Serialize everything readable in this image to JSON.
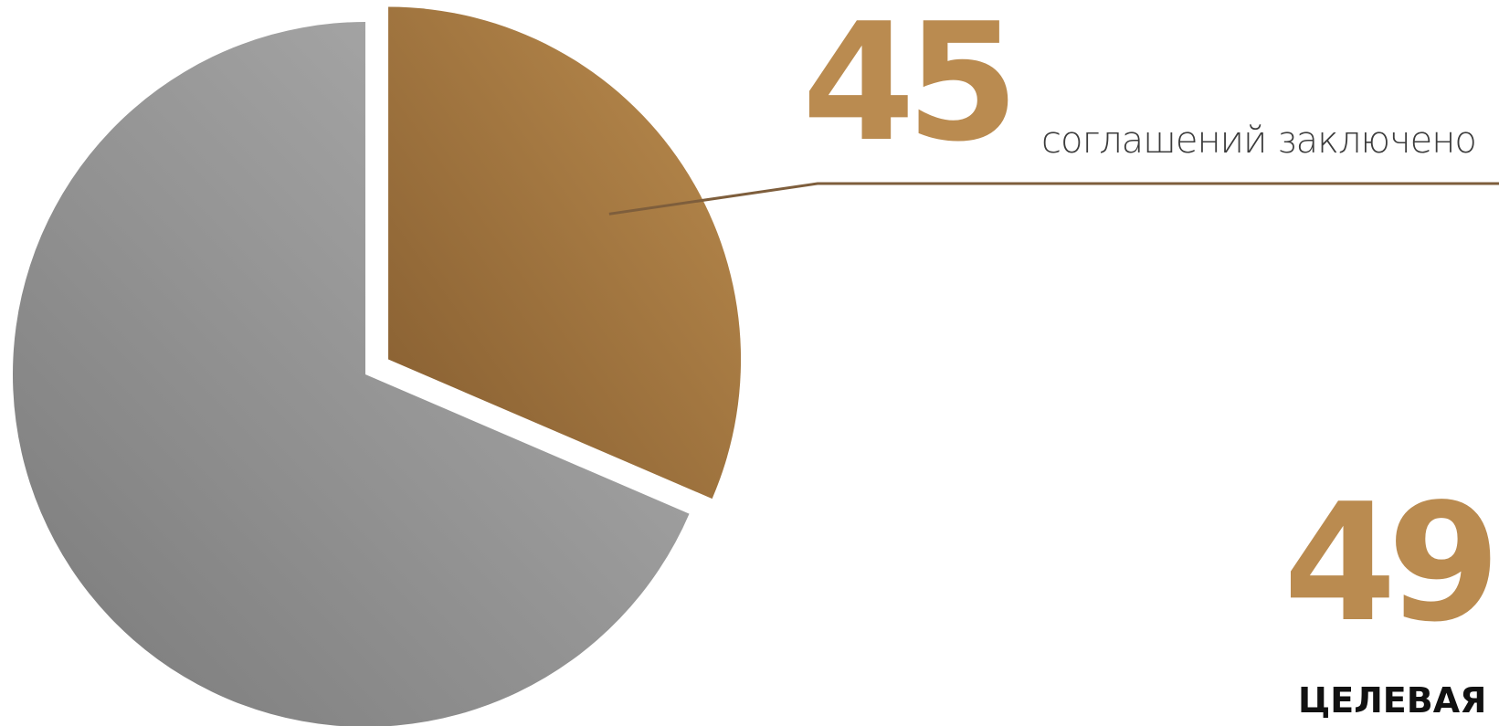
{
  "chart_data": {
    "type": "pie",
    "title": "",
    "slices": [
      {
        "label": "соглашений заключено",
        "value": 45,
        "exploded": true
      },
      {
        "label": "",
        "value": 98,
        "exploded": false
      }
    ],
    "total_shown": 49,
    "total_label": "ЦЕЛЕВАЯ П",
    "start_angle_deg": 0,
    "legend": "none",
    "colors": {
      "highlight_light": "#bb8c4e",
      "highlight_dark": "#855d30",
      "rest_light": "#b0b0b0",
      "rest_dark": "#7a7a7a",
      "leader_line": "#7e5e3c",
      "number": "#ba8b50"
    }
  },
  "annotations": {
    "agreements_number": "45",
    "agreements_caption": "соглашений заключено",
    "target_number": "49",
    "target_label": "ЦЕЛЕВАЯ П"
  }
}
